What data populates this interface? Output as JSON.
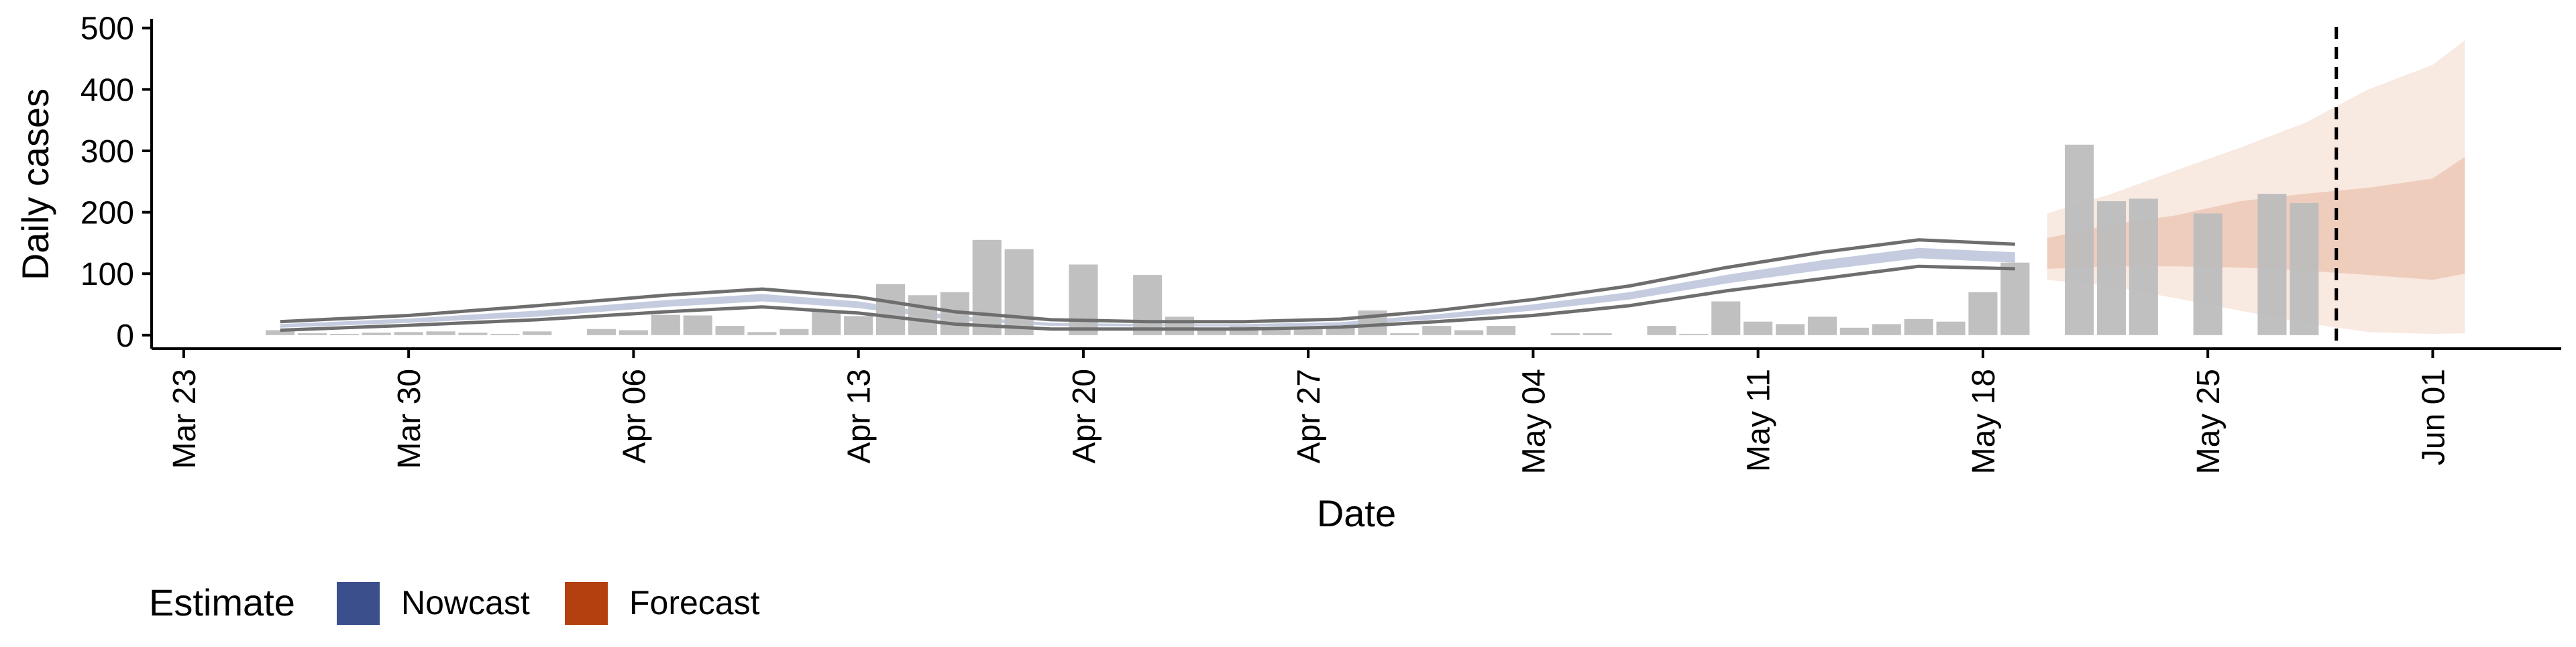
{
  "chart_data": {
    "type": "bar",
    "title": "",
    "xlabel": "Date",
    "ylabel": "Daily cases",
    "ylim": [
      -22,
      515
    ],
    "yticks": [
      0,
      100,
      200,
      300,
      400,
      500
    ],
    "xlim": [
      "2020-03-22",
      "2020-06-05"
    ],
    "xticks": [
      {
        "date": "2020-03-23",
        "label": "Mar 23"
      },
      {
        "date": "2020-03-30",
        "label": "Mar 30"
      },
      {
        "date": "2020-04-06",
        "label": "Apr 06"
      },
      {
        "date": "2020-04-13",
        "label": "Apr 13"
      },
      {
        "date": "2020-04-20",
        "label": "Apr 20"
      },
      {
        "date": "2020-04-27",
        "label": "Apr 27"
      },
      {
        "date": "2020-05-04",
        "label": "May 04"
      },
      {
        "date": "2020-05-11",
        "label": "May 11"
      },
      {
        "date": "2020-05-18",
        "label": "May 18"
      },
      {
        "date": "2020-05-25",
        "label": "May 25"
      },
      {
        "date": "2020-06-01",
        "label": "Jun 01"
      }
    ],
    "grid": false,
    "legend": {
      "position": "bottom-left",
      "title": "Estimate",
      "entries": [
        {
          "label": "Nowcast",
          "color": "#3a4f8c"
        },
        {
          "label": "Forecast",
          "color": "#b5400f"
        }
      ]
    },
    "colors": {
      "bars": "#bdbdbd",
      "nowcast_band": "#c5cce0",
      "nowcast_lines": "#6e6e6e",
      "forecast_outer": "#f8e9e1",
      "forecast_inner": "#efcdbd",
      "vline": "#000000"
    },
    "vline": {
      "date": "2020-05-29",
      "style": "dashed"
    },
    "reported_cases": {
      "dates": [
        "2020-03-26",
        "2020-03-27",
        "2020-03-28",
        "2020-03-29",
        "2020-03-30",
        "2020-03-31",
        "2020-04-01",
        "2020-04-02",
        "2020-04-03",
        "2020-04-04",
        "2020-04-05",
        "2020-04-06",
        "2020-04-07",
        "2020-04-08",
        "2020-04-09",
        "2020-04-10",
        "2020-04-11",
        "2020-04-12",
        "2020-04-13",
        "2020-04-14",
        "2020-04-15",
        "2020-04-16",
        "2020-04-17",
        "2020-04-18",
        "2020-04-19",
        "2020-04-20",
        "2020-04-21",
        "2020-04-22",
        "2020-04-23",
        "2020-04-24",
        "2020-04-25",
        "2020-04-26",
        "2020-04-27",
        "2020-04-28",
        "2020-04-29",
        "2020-04-30",
        "2020-05-01",
        "2020-05-02",
        "2020-05-03",
        "2020-05-04",
        "2020-05-05",
        "2020-05-06",
        "2020-05-07",
        "2020-05-08",
        "2020-05-09",
        "2020-05-10",
        "2020-05-11",
        "2020-05-12",
        "2020-05-13",
        "2020-05-14",
        "2020-05-15",
        "2020-05-16",
        "2020-05-17",
        "2020-05-18",
        "2020-05-19",
        "2020-05-20",
        "2020-05-21",
        "2020-05-22",
        "2020-05-23",
        "2020-05-24",
        "2020-05-25",
        "2020-05-26",
        "2020-05-27",
        "2020-05-28",
        "2020-05-29"
      ],
      "values": [
        8,
        3,
        2,
        4,
        5,
        6,
        4,
        2,
        6,
        0,
        10,
        8,
        33,
        32,
        15,
        5,
        10,
        40,
        31,
        83,
        65,
        70,
        155,
        140,
        0,
        115,
        0,
        98,
        30,
        12,
        14,
        12,
        10,
        12,
        40,
        3,
        15,
        8,
        15,
        0,
        3,
        3,
        0,
        15,
        2,
        55,
        22,
        18,
        30,
        12,
        18,
        26,
        22,
        70,
        118,
        0,
        310,
        218,
        222,
        0,
        198,
        0,
        230,
        215,
        0
      ]
    },
    "nowcast": {
      "dates": [
        "2020-03-26",
        "2020-03-30",
        "2020-04-03",
        "2020-04-07",
        "2020-04-10",
        "2020-04-13",
        "2020-04-16",
        "2020-04-19",
        "2020-04-22",
        "2020-04-25",
        "2020-04-28",
        "2020-05-01",
        "2020-05-04",
        "2020-05-07",
        "2020-05-10",
        "2020-05-13",
        "2020-05-16",
        "2020-05-19"
      ],
      "upper": [
        22,
        32,
        48,
        65,
        75,
        62,
        38,
        25,
        22,
        22,
        26,
        40,
        58,
        80,
        110,
        135,
        155,
        148
      ],
      "band_upper": [
        18,
        27,
        40,
        57,
        67,
        55,
        31,
        20,
        18,
        18,
        21,
        34,
        50,
        70,
        98,
        122,
        142,
        135
      ],
      "band_lower": [
        12,
        20,
        30,
        46,
        55,
        44,
        24,
        15,
        14,
        14,
        16,
        26,
        40,
        58,
        84,
        106,
        125,
        118
      ],
      "lower": [
        8,
        16,
        25,
        38,
        46,
        36,
        18,
        10,
        10,
        10,
        13,
        22,
        32,
        48,
        72,
        92,
        112,
        108
      ]
    },
    "forecast": {
      "dates": [
        "2020-05-20",
        "2020-05-22",
        "2020-05-24",
        "2020-05-26",
        "2020-05-28",
        "2020-05-30",
        "2020-06-01",
        "2020-06-02"
      ],
      "outer_upper": [
        198,
        230,
        268,
        305,
        345,
        400,
        440,
        480
      ],
      "inner_upper": [
        158,
        180,
        195,
        218,
        230,
        240,
        255,
        290
      ],
      "inner_lower": [
        108,
        112,
        112,
        110,
        105,
        98,
        90,
        100
      ],
      "outer_lower": [
        90,
        80,
        60,
        40,
        20,
        5,
        2,
        3
      ]
    }
  }
}
